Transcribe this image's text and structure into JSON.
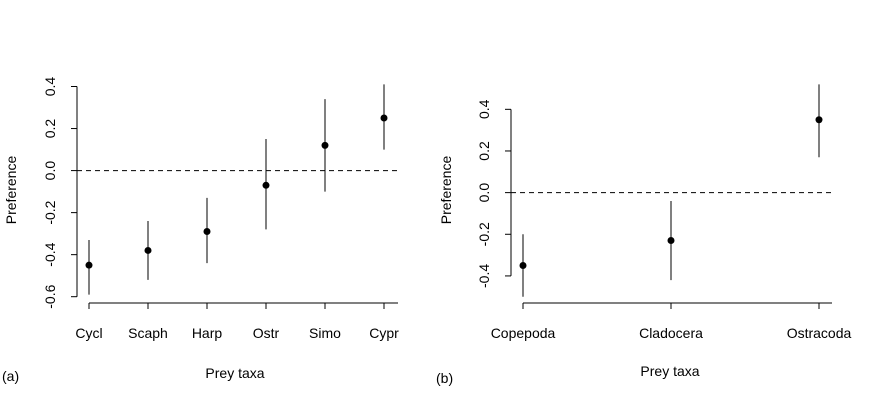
{
  "chart_data": [
    {
      "type": "scatter",
      "panel_label": "(a)",
      "xlabel": "Prey taxa",
      "ylabel": "Preference",
      "categories": [
        "Cycl",
        "Scaph",
        "Harp",
        "Ostr",
        "Simo",
        "Cypr"
      ],
      "estimate": [
        -0.45,
        -0.38,
        -0.29,
        -0.07,
        0.12,
        0.25
      ],
      "lower": [
        -0.59,
        -0.52,
        -0.44,
        -0.28,
        -0.1,
        0.1
      ],
      "upper": [
        -0.33,
        -0.24,
        -0.13,
        0.15,
        0.34,
        0.41
      ],
      "ylim": [
        -0.63,
        0.45
      ],
      "yticks": [
        -0.6,
        -0.4,
        -0.2,
        0.0,
        0.2,
        0.4
      ],
      "ytick_labels": [
        "-0.6",
        "-0.4",
        "-0.2",
        "0.0",
        "0.2",
        "0.4"
      ],
      "reference_line": 0.0,
      "grid": false
    },
    {
      "type": "scatter",
      "panel_label": "(b)",
      "xlabel": "Prey taxa",
      "ylabel": "Preference",
      "categories": [
        "Copepoda",
        "Cladocera",
        "Ostracoda"
      ],
      "estimate": [
        -0.35,
        -0.23,
        0.35
      ],
      "lower": [
        -0.5,
        -0.42,
        0.17
      ],
      "upper": [
        -0.2,
        -0.04,
        0.52
      ],
      "ylim": [
        -0.53,
        0.56
      ],
      "yticks": [
        -0.4,
        -0.2,
        0.0,
        0.2,
        0.4
      ],
      "ytick_labels": [
        "-0.4",
        "-0.2",
        "0.0",
        "0.2",
        "0.4"
      ],
      "reference_line": 0.0,
      "grid": false
    }
  ]
}
